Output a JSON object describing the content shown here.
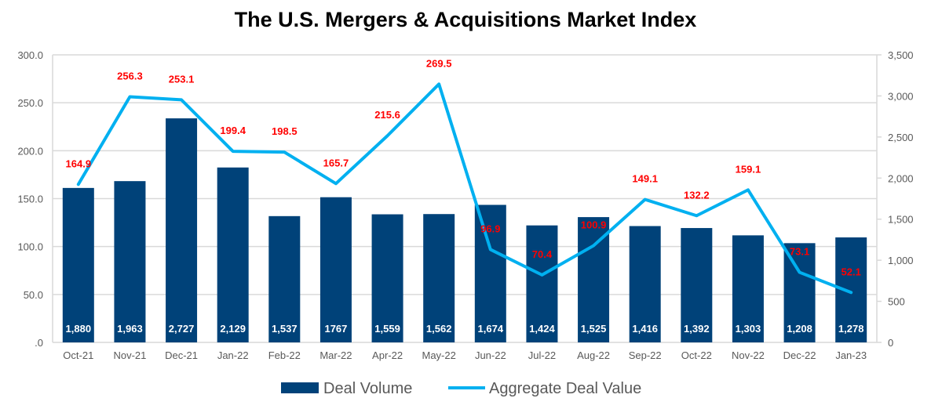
{
  "chart_data": {
    "type": "bar+line",
    "title": "The U.S. Mergers & Acquisitions Market Index",
    "categories": [
      "Oct-21",
      "Nov-21",
      "Dec-21",
      "Jan-22",
      "Feb-22",
      "Mar-22",
      "Apr-22",
      "May-22",
      "Jun-22",
      "Jul-22",
      "Aug-22",
      "Sep-22",
      "Oct-22",
      "Nov-22",
      "Dec-22",
      "Jan-23"
    ],
    "series": [
      {
        "name": "Deal Volume",
        "type": "bar",
        "axis": "right",
        "color": "#004279",
        "values": [
          1880,
          1963,
          2727,
          2129,
          1537,
          1767,
          1559,
          1562,
          1674,
          1424,
          1525,
          1416,
          1392,
          1303,
          1208,
          1278
        ],
        "labels": [
          "1,880",
          "1,963",
          "2,727",
          "2,129",
          "1,537",
          "1767",
          "1,559",
          "1,562",
          "1,674",
          "1,424",
          "1,525",
          "1,416",
          "1,392",
          "1,303",
          "1,208",
          "1,278"
        ]
      },
      {
        "name": "Aggregate Deal Value",
        "type": "line",
        "axis": "left",
        "color": "#00b0f0",
        "values": [
          164.9,
          256.3,
          253.1,
          199.4,
          198.5,
          165.7,
          215.6,
          269.5,
          96.9,
          70.4,
          100.9,
          149.1,
          132.2,
          159.1,
          73.1,
          52.1
        ],
        "labels": [
          "164.9",
          "256.3",
          "253.1",
          "199.4",
          "198.5",
          "165.7",
          "215.6",
          "269.5",
          "96.9",
          "70.4",
          "100.9",
          "149.1",
          "132.2",
          "159.1",
          "73.1",
          "52.1"
        ]
      }
    ],
    "left_axis": {
      "ylim": [
        0,
        300
      ],
      "ticks": [
        ".0",
        "50.0",
        "100.0",
        "150.0",
        "200.0",
        "250.0",
        "300.0"
      ]
    },
    "right_axis": {
      "ylim": [
        0,
        3500
      ],
      "ticks": [
        "0",
        "500",
        "1,000",
        "1,500",
        "2,000",
        "2,500",
        "3,000",
        "3,500"
      ]
    },
    "grid": true,
    "legend": "bottom",
    "label_color": "#ff0000"
  }
}
